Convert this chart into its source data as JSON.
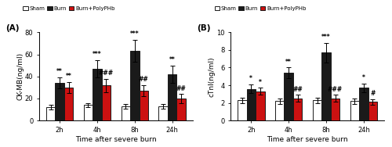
{
  "panel_A": {
    "title": "(A)",
    "ylabel": "CK-MB(ng/ml)",
    "xlabel": "Time after severe burn",
    "ylim": [
      0,
      80
    ],
    "yticks": [
      0,
      20,
      40,
      60,
      80
    ],
    "time_labels": [
      "2h",
      "4h",
      "8h",
      "24h"
    ],
    "sham_means": [
      12,
      14,
      13,
      13
    ],
    "sham_errs": [
      2,
      2,
      2,
      2
    ],
    "burn_means": [
      34,
      47,
      63,
      42
    ],
    "burn_errs": [
      5,
      8,
      10,
      8
    ],
    "poly_means": [
      30,
      32,
      27,
      20
    ],
    "poly_errs": [
      5,
      6,
      5,
      4
    ],
    "burn_sig": [
      "**",
      "***",
      "***",
      "**"
    ],
    "poly_sig_vs_sham": [
      "**",
      "",
      "",
      ""
    ],
    "poly_sig_vs_burn": [
      "",
      "###",
      "##",
      "##"
    ]
  },
  "panel_B": {
    "title": "(B)",
    "ylabel": "cTnI(ng/ml)",
    "xlabel": "Time after severe burn",
    "ylim": [
      0,
      10
    ],
    "yticks": [
      0,
      2,
      4,
      6,
      8,
      10
    ],
    "time_labels": [
      "2h",
      "4h",
      "8h",
      "24h"
    ],
    "sham_means": [
      2.3,
      2.2,
      2.3,
      2.2
    ],
    "sham_errs": [
      0.3,
      0.3,
      0.3,
      0.3
    ],
    "burn_means": [
      3.6,
      5.4,
      7.7,
      3.7
    ],
    "burn_errs": [
      0.5,
      0.6,
      1.1,
      0.5
    ],
    "poly_means": [
      3.3,
      2.5,
      2.5,
      2.1
    ],
    "poly_errs": [
      0.4,
      0.4,
      0.4,
      0.3
    ],
    "burn_sig": [
      "*",
      "**",
      "***",
      "*"
    ],
    "poly_sig_vs_sham": [
      "*",
      "",
      "",
      ""
    ],
    "poly_sig_vs_burn": [
      "",
      "##",
      "###",
      "#"
    ]
  },
  "colors": {
    "sham": "#ffffff",
    "burn": "#1a1a1a",
    "poly": "#cc1111"
  },
  "bar_width": 0.24,
  "edge_color": "#1a1a1a",
  "legend_labels": [
    "Sham",
    "Burn",
    "Burn+PolyPHb"
  ]
}
